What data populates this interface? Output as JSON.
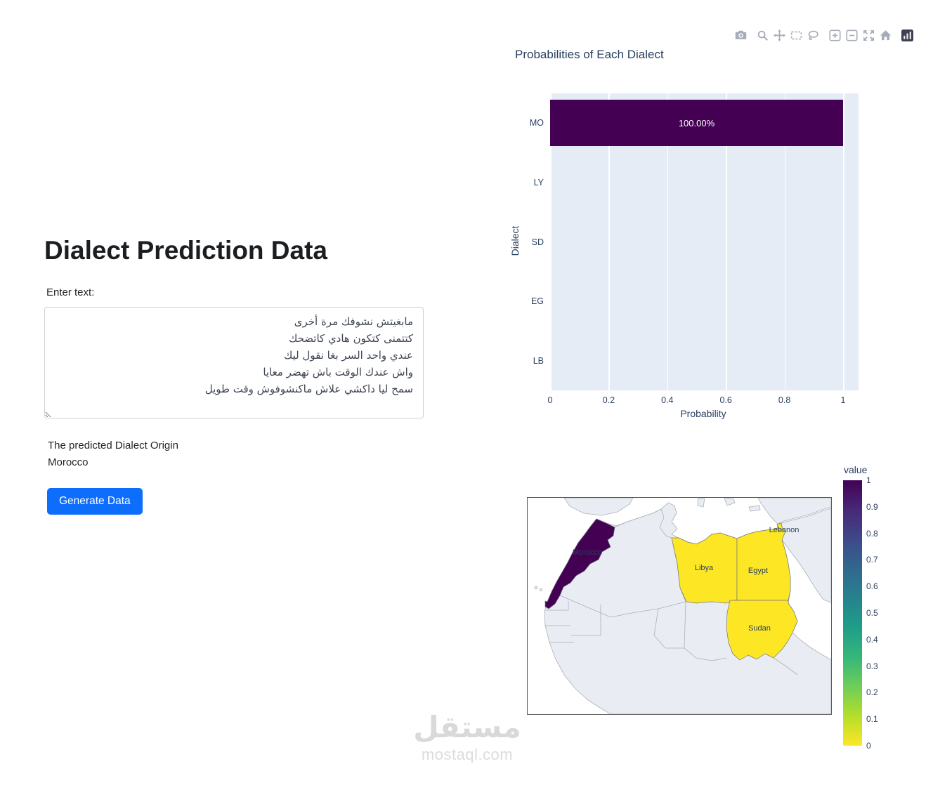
{
  "page": {
    "title": "Dialect Prediction Data",
    "input_label": "Enter text:",
    "input_value": "مابغيتش نشوفك مرة أخرى\nكتتمنى كتكون هادي كاتضحك\nعندي واحد السر بغا نقول ليك\nواش عندك الوقت باش تهضر معايا\nسمح ليا داكشي علاش ماكنشوفوش وقت طويل",
    "prediction_label": "The predicted Dialect Origin",
    "prediction_value": "Morocco",
    "generate_button": "Generate Data",
    "accent_color": "#0d6efd"
  },
  "modebar": {
    "icons": [
      "camera",
      "zoom",
      "pan",
      "box-select",
      "lasso",
      "zoom-in",
      "zoom-out",
      "autoscale",
      "reset-axes",
      "plotly-logo"
    ]
  },
  "chart_data": [
    {
      "type": "bar",
      "orientation": "horizontal",
      "title": "Probabilities of Each Dialect",
      "categories": [
        "MO",
        "LY",
        "SD",
        "EG",
        "LB"
      ],
      "values": [
        1.0,
        0.0,
        0.0,
        0.0,
        0.0
      ],
      "bar_labels": [
        "100.00%",
        "",
        "",
        "",
        ""
      ],
      "xlabel": "Probability",
      "ylabel": "Dialect",
      "xlim": [
        0,
        1
      ],
      "xticks": [
        0,
        0.2,
        0.4,
        0.6,
        0.8,
        1
      ],
      "xtick_labels": [
        "0",
        "0.2",
        "0.4",
        "0.6",
        "0.8",
        "1"
      ],
      "bar_color": "#440154",
      "bar_label_color": "#ffffff",
      "plot_bgcolor": "#e5ecf6",
      "grid": true,
      "legend": "none"
    },
    {
      "type": "choropleth",
      "region": "North Africa and Middle East",
      "colorbar": {
        "title": "value",
        "min": 0,
        "max": 1,
        "colorscale": "viridis",
        "ticks": [
          "1",
          "0.9",
          "0.8",
          "0.7",
          "0.6",
          "0.5",
          "0.4",
          "0.3",
          "0.2",
          "0.1",
          "0"
        ]
      },
      "countries": [
        {
          "name": "Morocco",
          "value": 1,
          "color": "#440154"
        },
        {
          "name": "Libya",
          "value": 0,
          "color": "#fde725"
        },
        {
          "name": "Egypt",
          "value": 0,
          "color": "#fde725"
        },
        {
          "name": "Sudan",
          "value": 0,
          "color": "#fde725"
        },
        {
          "name": "Lebanon",
          "value": 0,
          "color": "#fde725"
        }
      ]
    }
  ],
  "watermark": {
    "arabic": "مستقل",
    "domain": "mostaql.com"
  }
}
